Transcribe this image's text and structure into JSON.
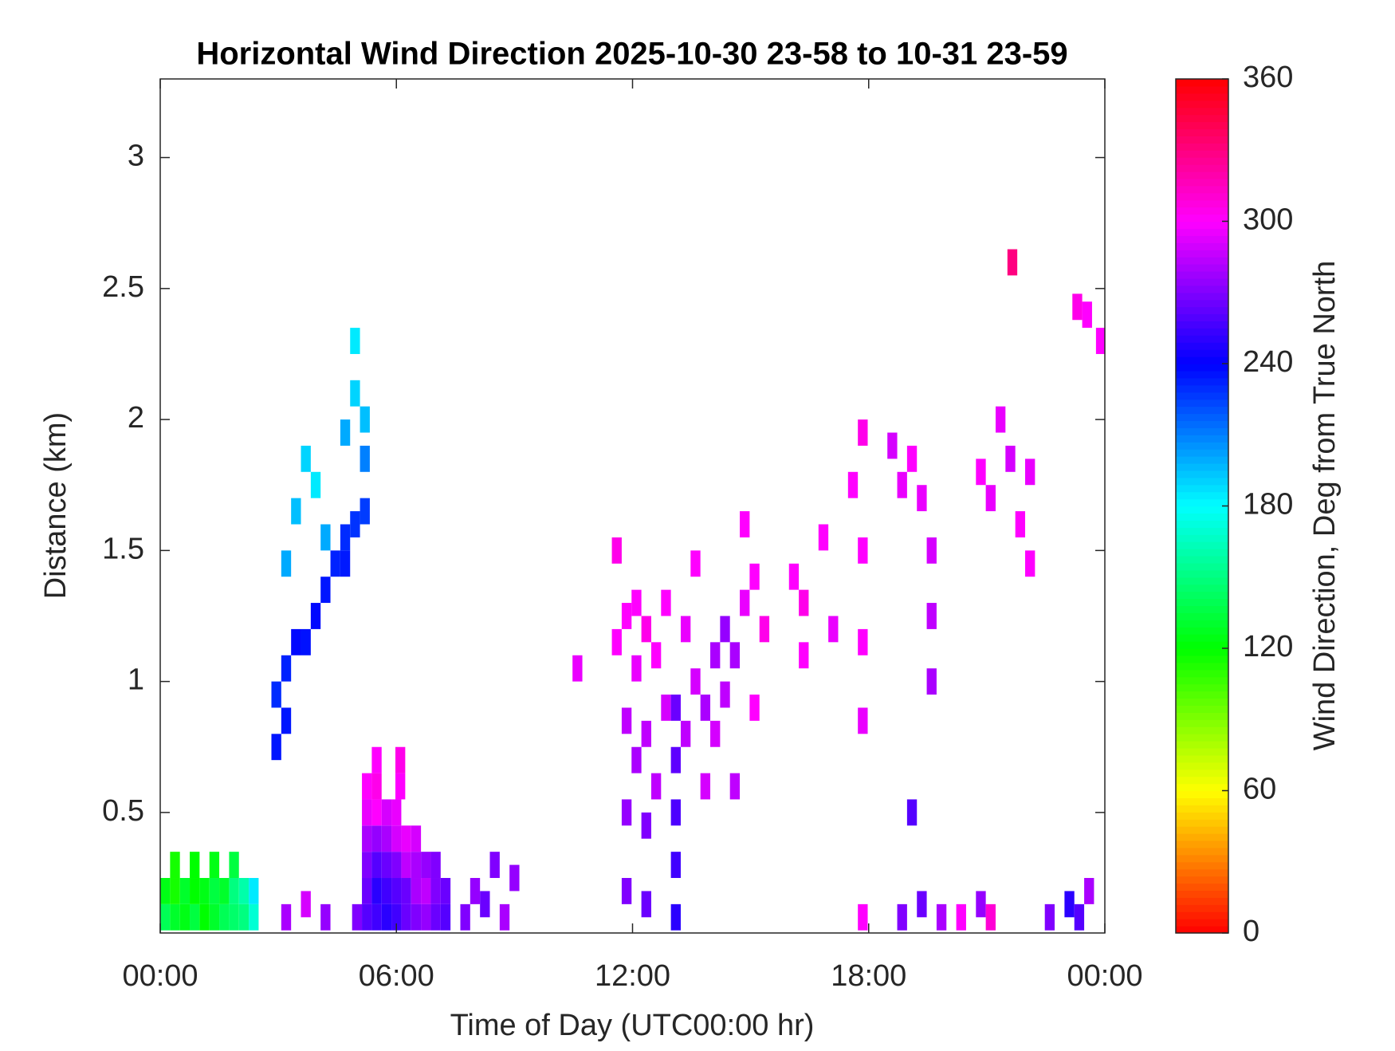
{
  "chart_data": {
    "type": "heatmap",
    "title": "Horizontal Wind Direction 2025-10-30 23-58 to 10-31 23-59",
    "xlabel": "Time of Day (UTC00:00 hr)",
    "ylabel": "Distance (km)",
    "colorbar_label": "Wind Direction, Deg from True North",
    "colormap": "hsv",
    "clim": [
      0,
      360
    ],
    "colorbar_ticks": [
      0,
      60,
      120,
      180,
      240,
      300,
      360
    ],
    "xlim": [
      0,
      24
    ],
    "ylim": [
      0.04,
      3.3
    ],
    "xticks": [
      {
        "value": 0,
        "label": "00:00"
      },
      {
        "value": 6,
        "label": "06:00"
      },
      {
        "value": 12,
        "label": "12:00"
      },
      {
        "value": 18,
        "label": "18:00"
      },
      {
        "value": 24,
        "label": "00:00"
      }
    ],
    "yticks": [
      0.5,
      1,
      1.5,
      2,
      2.5,
      3
    ],
    "x": [
      0.125,
      0.375,
      0.625,
      0.875,
      1.125,
      1.375,
      1.625,
      1.875,
      2.125,
      2.375,
      0.125,
      0.375,
      0.625,
      0.875,
      1.125,
      1.375,
      1.625,
      1.875,
      2.125,
      2.375,
      0.375,
      0.875,
      1.375,
      1.875,
      2.95,
      2.95,
      3.2,
      3.2,
      3.45,
      3.7,
      3.95,
      4.2,
      4.45,
      4.7,
      4.7,
      4.95,
      5.2,
      3.2,
      3.45,
      3.7,
      3.95,
      4.2,
      4.7,
      4.95,
      5.2,
      4.95,
      5.2,
      5,
      5.25,
      5.5,
      5.75,
      6,
      6.25,
      6.5,
      6.75,
      7,
      7.25,
      5.25,
      5.5,
      5.75,
      6,
      6.25,
      6.5,
      6.75,
      7,
      7.25,
      5.25,
      5.5,
      5.75,
      6,
      6.25,
      6.5,
      6.75,
      7,
      5.25,
      5.5,
      5.75,
      6,
      6.25,
      6.5,
      5.25,
      5.5,
      5.75,
      6,
      5.25,
      5.5,
      6.1,
      5.5,
      6.1,
      7.75,
      8,
      8.25,
      8.5,
      8.75,
      9,
      10.6,
      11.6,
      11.6,
      11.85,
      11.85,
      11.85,
      12.1,
      12.1,
      12.1,
      12.35,
      12.35,
      12.35,
      12.6,
      12.6,
      12.85,
      12.85,
      13.35,
      13.35,
      13.6,
      13.6,
      13.85,
      13.85,
      14.1,
      14.1,
      14.35,
      14.35,
      14.6,
      14.6,
      14.85,
      14.85,
      15.1,
      15.1,
      15.35,
      13.1,
      13.1,
      13.1,
      13.1,
      13.1,
      16.1,
      16.35,
      16.35,
      16.85,
      17.1,
      17.6,
      17.85,
      17.85,
      17.85,
      17.85,
      18.6,
      18.85,
      19.1,
      19.35,
      19.6,
      19.6,
      19.6,
      20.85,
      21.1,
      21.35,
      21.6,
      21.85,
      22.1,
      22.1,
      23.3,
      23.55,
      23.9,
      21.65,
      18.85,
      19.35,
      19.85,
      20.35,
      20.85,
      21.1,
      22.6,
      23.1,
      23.35,
      23.6,
      17.85,
      19.1,
      3.2,
      3.7,
      4.2,
      11.85,
      12.35
    ],
    "y": [
      0.1,
      0.1,
      0.1,
      0.1,
      0.1,
      0.1,
      0.1,
      0.1,
      0.1,
      0.1,
      0.2,
      0.2,
      0.2,
      0.2,
      0.2,
      0.2,
      0.2,
      0.2,
      0.2,
      0.2,
      0.3,
      0.3,
      0.3,
      0.3,
      0.75,
      0.95,
      1.05,
      0.85,
      1.15,
      1.15,
      1.25,
      1.35,
      1.45,
      1.45,
      1.55,
      1.6,
      1.65,
      1.45,
      1.65,
      1.85,
      1.75,
      1.55,
      1.95,
      2.1,
      2.0,
      2.3,
      1.85,
      0.1,
      0.1,
      0.1,
      0.1,
      0.1,
      0.1,
      0.1,
      0.1,
      0.1,
      0.1,
      0.2,
      0.2,
      0.2,
      0.2,
      0.2,
      0.2,
      0.2,
      0.2,
      0.2,
      0.3,
      0.3,
      0.3,
      0.3,
      0.3,
      0.3,
      0.3,
      0.3,
      0.4,
      0.4,
      0.4,
      0.4,
      0.4,
      0.4,
      0.5,
      0.5,
      0.5,
      0.5,
      0.6,
      0.6,
      0.6,
      0.7,
      0.7,
      0.1,
      0.2,
      0.15,
      0.3,
      0.1,
      0.25,
      1.05,
      1.5,
      1.15,
      1.25,
      0.85,
      0.5,
      1.3,
      1.05,
      0.7,
      1.2,
      0.8,
      0.45,
      1.1,
      0.6,
      1.3,
      0.9,
      1.2,
      0.8,
      1.0,
      1.45,
      0.9,
      0.6,
      1.1,
      0.8,
      1.2,
      0.95,
      1.1,
      0.6,
      1.3,
      1.6,
      0.9,
      1.4,
      1.2,
      0.1,
      0.3,
      0.5,
      0.7,
      0.9,
      1.4,
      1.3,
      1.1,
      1.55,
      1.2,
      1.75,
      1.95,
      1.5,
      1.15,
      0.85,
      1.9,
      1.75,
      1.85,
      1.7,
      1.5,
      1.25,
      1.0,
      1.8,
      1.7,
      2.0,
      1.85,
      1.6,
      1.8,
      1.45,
      2.43,
      2.4,
      2.3,
      2.6,
      0.1,
      0.15,
      0.1,
      0.1,
      0.15,
      0.1,
      0.1,
      0.15,
      0.1,
      0.2,
      0.1,
      0.5,
      0.1,
      0.15,
      0.1,
      0.2,
      0.15
    ],
    "values": [
      140,
      130,
      125,
      135,
      120,
      130,
      140,
      145,
      150,
      170,
      125,
      115,
      130,
      120,
      125,
      135,
      130,
      150,
      160,
      185,
      115,
      120,
      125,
      135,
      235,
      230,
      232,
      235,
      238,
      236,
      238,
      235,
      232,
      234,
      230,
      228,
      226,
      200,
      195,
      190,
      185,
      200,
      200,
      190,
      195,
      185,
      210,
      270,
      260,
      255,
      250,
      255,
      265,
      270,
      275,
      265,
      260,
      265,
      250,
      255,
      260,
      265,
      280,
      285,
      270,
      265,
      270,
      260,
      265,
      270,
      285,
      280,
      275,
      270,
      280,
      275,
      280,
      290,
      295,
      290,
      295,
      300,
      290,
      295,
      300,
      305,
      300,
      300,
      305,
      270,
      275,
      265,
      270,
      280,
      275,
      295,
      305,
      300,
      300,
      285,
      275,
      300,
      295,
      280,
      305,
      285,
      270,
      300,
      285,
      300,
      290,
      295,
      285,
      290,
      300,
      280,
      290,
      280,
      290,
      275,
      285,
      280,
      285,
      295,
      300,
      300,
      300,
      305,
      250,
      255,
      258,
      262,
      265,
      300,
      305,
      300,
      300,
      295,
      300,
      305,
      300,
      300,
      295,
      290,
      295,
      300,
      295,
      290,
      285,
      280,
      300,
      295,
      295,
      290,
      300,
      295,
      300,
      305,
      300,
      300,
      330,
      270,
      265,
      280,
      300,
      275,
      310,
      270,
      250,
      260,
      280,
      300,
      260,
      280,
      290,
      275,
      270,
      265
    ]
  }
}
